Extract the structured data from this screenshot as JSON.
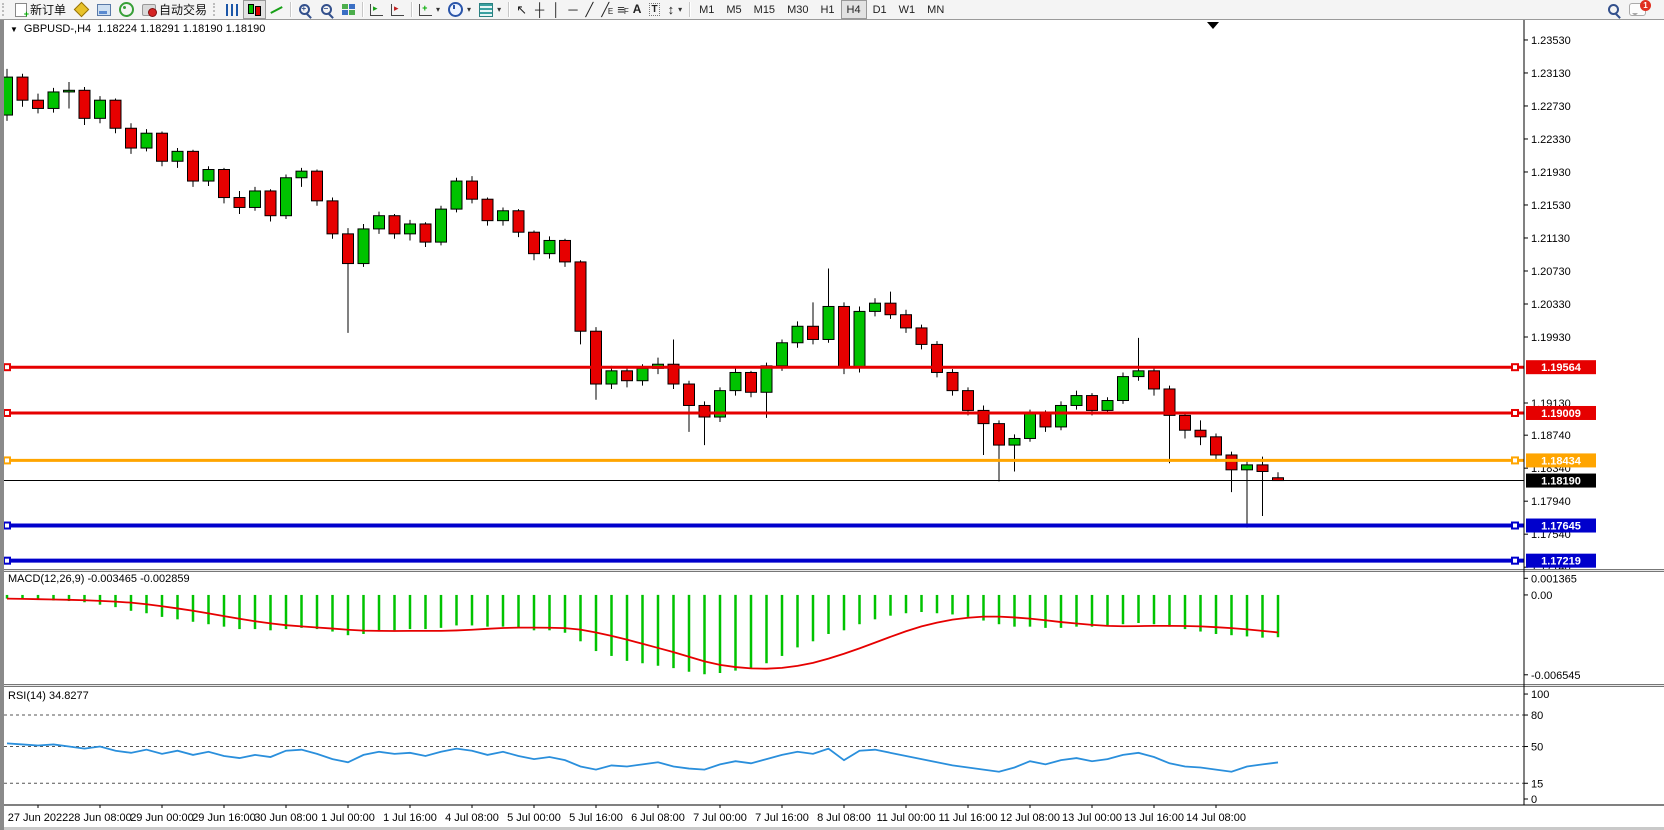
{
  "toolbar": {
    "new_order_label": "新订单",
    "autotrading_label": "自动交易",
    "icon_glyphs": {
      "channel_suffix": "E",
      "fibo_suffix": "F",
      "text_tool": "A",
      "label_tool": "T",
      "cursor": "↖",
      "crosshair": "┼",
      "vline": "│",
      "hline": "─",
      "trendline": "╱",
      "arrows_tool": "↕",
      "plus": "+",
      "minus": "−",
      "dropdown": "▾",
      "autoscroll_arrow": "▸",
      "shift_arrow": "▸",
      "add_chart_plus": "+"
    },
    "timeframes": [
      {
        "label": "M1"
      },
      {
        "label": "M5"
      },
      {
        "label": "M15"
      },
      {
        "label": "M30"
      },
      {
        "label": "H1"
      },
      {
        "label": "H4"
      },
      {
        "label": "D1"
      },
      {
        "label": "W1"
      },
      {
        "label": "MN"
      }
    ],
    "active_timeframe": "H4",
    "notification_count": "1"
  },
  "chart": {
    "symbol_period": "GBPUSD-,H4",
    "ohlc_text": "1.18224 1.18291 1.18190 1.18190"
  },
  "chart_data": {
    "type": "candlestick",
    "title": "GBPUSD- H4",
    "current_ohlc": {
      "open": "1.18224",
      "high": "1.18291",
      "low": "1.18190",
      "close": "1.18190"
    },
    "price_axis": {
      "ticks": [
        "1.23530",
        "1.23130",
        "1.22730",
        "1.22330",
        "1.21930",
        "1.21530",
        "1.21130",
        "1.20730",
        "1.20330",
        "1.19930",
        "1.19130",
        "1.18740",
        "1.18340",
        "1.17940",
        "1.17540",
        "1.17140"
      ],
      "range": {
        "max": 1.23772,
        "min": 1.17118
      }
    },
    "time_axis": [
      "27 Jun 2022",
      "28 Jun 08:00",
      "29 Jun 00:00",
      "29 Jun 16:00",
      "30 Jun 08:00",
      "1 Jul 00:00",
      "1 Jul 16:00",
      "4 Jul 08:00",
      "5 Jul 00:00",
      "5 Jul 16:00",
      "6 Jul 08:00",
      "7 Jul 00:00",
      "7 Jul 16:00",
      "8 Jul 08:00",
      "11 Jul 00:00",
      "11 Jul 16:00",
      "12 Jul 08:00",
      "13 Jul 00:00",
      "13 Jul 16:00",
      "14 Jul 08:00"
    ],
    "colors": {
      "bull": "#00c300",
      "bear": "#e60000",
      "wick": "#000000",
      "macd_hist": "#00c300",
      "macd_signal": "#e60000",
      "rsi_line": "#2a8fdc"
    },
    "hlines": [
      {
        "price": 1.19564,
        "label": "1.19564",
        "color": "#e60000",
        "width": 3,
        "handles": true
      },
      {
        "price": 1.19009,
        "label": "1.19009",
        "color": "#e60000",
        "width": 3,
        "handles": true
      },
      {
        "price": 1.18434,
        "label": "1.18434",
        "color": "#ffa500",
        "width": 3,
        "handles": true
      },
      {
        "price": 1.1819,
        "label": "1.18190",
        "color": "#000000",
        "width": 1,
        "handles": false
      },
      {
        "price": 1.17645,
        "label": "1.17645",
        "color": "#0000cc",
        "width": 4,
        "handles": true
      },
      {
        "price": 1.17219,
        "label": "1.17219",
        "color": "#0000cc",
        "width": 4,
        "handles": true
      }
    ],
    "candles": [
      [
        1.2262,
        1.2318,
        1.2255,
        1.2308
      ],
      [
        1.2308,
        1.2312,
        1.2272,
        1.228
      ],
      [
        1.228,
        1.2288,
        1.2264,
        1.227
      ],
      [
        1.227,
        1.2295,
        1.2265,
        1.229
      ],
      [
        1.229,
        1.2302,
        1.227,
        1.2292
      ],
      [
        1.2292,
        1.2296,
        1.225,
        1.2258
      ],
      [
        1.2258,
        1.2285,
        1.2252,
        1.228
      ],
      [
        1.228,
        1.2282,
        1.224,
        1.2246
      ],
      [
        1.2246,
        1.2252,
        1.2215,
        1.2222
      ],
      [
        1.2222,
        1.2245,
        1.2218,
        1.224
      ],
      [
        1.224,
        1.2242,
        1.22,
        1.2206
      ],
      [
        1.2206,
        1.2222,
        1.2198,
        1.2218
      ],
      [
        1.2218,
        1.222,
        1.2175,
        1.2182
      ],
      [
        1.2182,
        1.22,
        1.2176,
        1.2196
      ],
      [
        1.2196,
        1.2198,
        1.2155,
        1.2162
      ],
      [
        1.2162,
        1.217,
        1.2142,
        1.215
      ],
      [
        1.215,
        1.2175,
        1.2146,
        1.217
      ],
      [
        1.217,
        1.2172,
        1.2133,
        1.214
      ],
      [
        1.214,
        1.219,
        1.2136,
        1.2186
      ],
      [
        1.2186,
        1.2198,
        1.2175,
        1.2194
      ],
      [
        1.2194,
        1.2196,
        1.2152,
        1.2158
      ],
      [
        1.2158,
        1.2162,
        1.2112,
        1.2118
      ],
      [
        1.2118,
        1.2125,
        1.1998,
        1.2082
      ],
      [
        1.2082,
        1.213,
        1.2078,
        1.2124
      ],
      [
        1.2124,
        1.2145,
        1.2118,
        1.214
      ],
      [
        1.214,
        1.2142,
        1.2112,
        1.2118
      ],
      [
        1.2118,
        1.2135,
        1.211,
        1.213
      ],
      [
        1.213,
        1.2132,
        1.2102,
        1.2108
      ],
      [
        1.2108,
        1.2152,
        1.2104,
        1.2148
      ],
      [
        1.2148,
        1.2186,
        1.2144,
        1.2182
      ],
      [
        1.2182,
        1.2188,
        1.2155,
        1.216
      ],
      [
        1.216,
        1.2162,
        1.2128,
        1.2134
      ],
      [
        1.2134,
        1.215,
        1.2128,
        1.2146
      ],
      [
        1.2146,
        1.2148,
        1.2114,
        1.212
      ],
      [
        1.212,
        1.2122,
        1.2086,
        1.2094
      ],
      [
        1.2094,
        1.2115,
        1.2088,
        1.211
      ],
      [
        1.211,
        1.2112,
        1.2078,
        1.2084
      ],
      [
        1.2084,
        1.2086,
        1.1984,
        1.2
      ],
      [
        1.2,
        1.2005,
        1.1917,
        1.1936
      ],
      [
        1.1936,
        1.1958,
        1.193,
        1.1952
      ],
      [
        1.1952,
        1.1956,
        1.1932,
        1.194
      ],
      [
        1.194,
        1.196,
        1.1934,
        1.1955
      ],
      [
        1.1955,
        1.1968,
        1.1948,
        1.196
      ],
      [
        1.196,
        1.199,
        1.193,
        1.1936
      ],
      [
        1.1936,
        1.194,
        1.1878,
        1.191
      ],
      [
        1.191,
        1.1915,
        1.1862,
        1.1896
      ],
      [
        1.1896,
        1.1932,
        1.189,
        1.1928
      ],
      [
        1.1928,
        1.1955,
        1.1922,
        1.195
      ],
      [
        1.195,
        1.1952,
        1.192,
        1.1926
      ],
      [
        1.1926,
        1.1962,
        1.1895,
        1.1958
      ],
      [
        1.1958,
        1.199,
        1.1952,
        1.1986
      ],
      [
        1.1986,
        1.2012,
        1.198,
        1.2006
      ],
      [
        1.2006,
        1.2035,
        1.1984,
        1.199
      ],
      [
        1.199,
        1.2076,
        1.1986,
        1.203
      ],
      [
        1.203,
        1.2035,
        1.1948,
        1.1956
      ],
      [
        1.1956,
        1.203,
        1.195,
        1.2024
      ],
      [
        1.2024,
        1.204,
        1.2018,
        1.2034
      ],
      [
        1.2034,
        1.2048,
        1.2015,
        1.202
      ],
      [
        1.202,
        1.2026,
        1.1998,
        1.2004
      ],
      [
        1.2004,
        1.2008,
        1.1978,
        1.1984
      ],
      [
        1.1984,
        1.1988,
        1.1944,
        1.195
      ],
      [
        1.195,
        1.1954,
        1.1922,
        1.1928
      ],
      [
        1.1928,
        1.1932,
        1.1898,
        1.1904
      ],
      [
        1.1904,
        1.191,
        1.185,
        1.1888
      ],
      [
        1.1888,
        1.1892,
        1.1818,
        1.1862
      ],
      [
        1.1862,
        1.1875,
        1.183,
        1.187
      ],
      [
        1.187,
        1.1905,
        1.1866,
        1.19
      ],
      [
        1.19,
        1.1904,
        1.1878,
        1.1884
      ],
      [
        1.1884,
        1.1915,
        1.188,
        1.191
      ],
      [
        1.191,
        1.1928,
        1.1905,
        1.1922
      ],
      [
        1.1922,
        1.1925,
        1.1898,
        1.1904
      ],
      [
        1.1904,
        1.192,
        1.19,
        1.1916
      ],
      [
        1.1916,
        1.195,
        1.1912,
        1.1945
      ],
      [
        1.1945,
        1.1992,
        1.194,
        1.1952
      ],
      [
        1.1952,
        1.1956,
        1.1922,
        1.193
      ],
      [
        1.193,
        1.1934,
        1.184,
        1.1898
      ],
      [
        1.1898,
        1.1902,
        1.187,
        1.188
      ],
      [
        1.188,
        1.1892,
        1.1862,
        1.1872
      ],
      [
        1.1872,
        1.1876,
        1.1842,
        1.185
      ],
      [
        1.185,
        1.1854,
        1.1805,
        1.1832
      ],
      [
        1.1832,
        1.1845,
        1.1762,
        1.1838
      ],
      [
        1.1838,
        1.1848,
        1.1776,
        1.183
      ],
      [
        1.18224,
        1.18291,
        1.1819,
        1.1819
      ]
    ],
    "macd": {
      "label": "MACD(12,26,9)",
      "value_main": "-0.003465",
      "value_signal": "-0.002859",
      "scale_ticks": [
        "0.001365",
        "0.00",
        "-0.006545"
      ],
      "scale_values": [
        0.001365,
        0,
        -0.006545
      ],
      "range": {
        "max": 0.00188,
        "min": -0.0073
      },
      "values": [
        -0.0003,
        -0.00035,
        -0.0004,
        -0.00045,
        -0.0005,
        -0.0006,
        -0.0008,
        -0.001,
        -0.0013,
        -0.0015,
        -0.0018,
        -0.002,
        -0.0022,
        -0.0024,
        -0.0026,
        -0.0028,
        -0.0028,
        -0.0029,
        -0.0028,
        -0.0027,
        -0.0028,
        -0.003,
        -0.0033,
        -0.0032,
        -0.003,
        -0.0029,
        -0.0028,
        -0.0028,
        -0.0027,
        -0.0025,
        -0.0025,
        -0.0026,
        -0.0026,
        -0.0027,
        -0.0029,
        -0.0029,
        -0.0031,
        -0.0038,
        -0.0046,
        -0.005,
        -0.0054,
        -0.0056,
        -0.0058,
        -0.006,
        -0.0063,
        -0.0065,
        -0.0064,
        -0.0062,
        -0.006,
        -0.0056,
        -0.005,
        -0.0043,
        -0.0038,
        -0.0032,
        -0.0029,
        -0.0024,
        -0.002,
        -0.0017,
        -0.0015,
        -0.0014,
        -0.0015,
        -0.0016,
        -0.0018,
        -0.0021,
        -0.0024,
        -0.0026,
        -0.0026,
        -0.0027,
        -0.0027,
        -0.0026,
        -0.0026,
        -0.0025,
        -0.0024,
        -0.0023,
        -0.0024,
        -0.0026,
        -0.0028,
        -0.003,
        -0.0032,
        -0.0033,
        -0.0034,
        -0.0035,
        -0.003465
      ]
    },
    "rsi": {
      "label": "RSI(14)",
      "value": "34.8277",
      "scale_ticks": [
        "100",
        "80",
        "50",
        "15",
        "0"
      ],
      "scale_values": [
        100,
        80,
        50,
        15,
        0
      ],
      "levels": [
        80,
        50,
        15
      ],
      "range": {
        "max": 106.7,
        "min": -3.8
      },
      "values": [
        53,
        52,
        51,
        52,
        50,
        48,
        50,
        46,
        44,
        47,
        43,
        46,
        42,
        45,
        41,
        39,
        42,
        40,
        46,
        47,
        43,
        38,
        35,
        42,
        45,
        43,
        44,
        41,
        45,
        48,
        46,
        42,
        45,
        41,
        38,
        40,
        37,
        31,
        28,
        32,
        31,
        33,
        35,
        31,
        29,
        28,
        33,
        36,
        34,
        38,
        42,
        45,
        43,
        48,
        37,
        46,
        47,
        44,
        41,
        38,
        35,
        32,
        30,
        28,
        26,
        30,
        36,
        33,
        37,
        39,
        36,
        38,
        42,
        44,
        40,
        34,
        31,
        30,
        28,
        26,
        31,
        33,
        34.83
      ]
    }
  }
}
